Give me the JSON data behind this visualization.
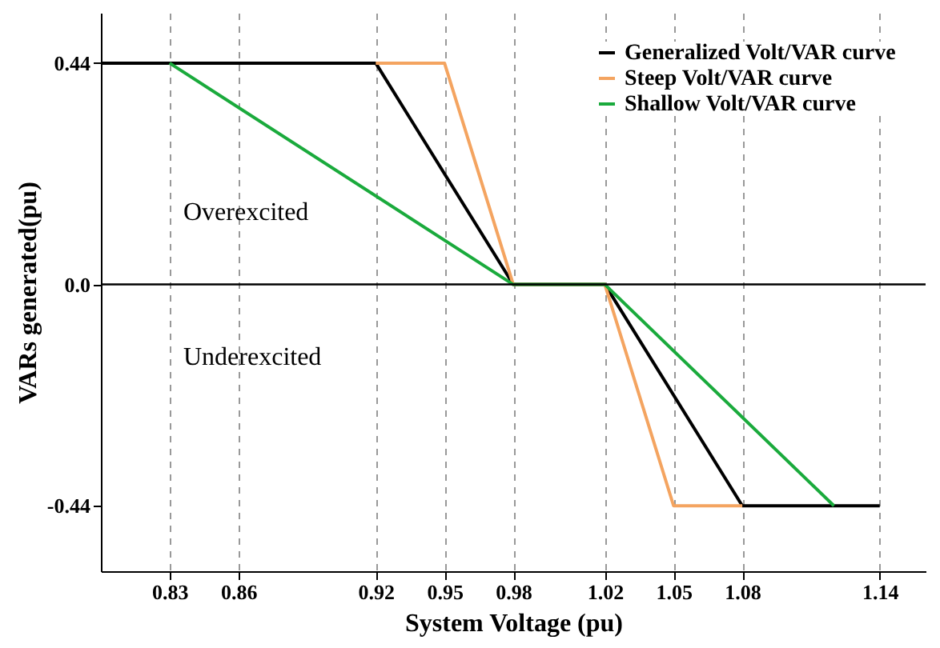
{
  "chart_data": {
    "type": "line",
    "xlabel": "System Voltage (pu)",
    "ylabel": "VARs generated(pu)",
    "xlim": [
      0.8,
      1.16
    ],
    "ylim": [
      -0.57,
      0.54
    ],
    "xticks": [
      0.83,
      0.86,
      0.92,
      0.95,
      0.98,
      1.02,
      1.05,
      1.08,
      1.14
    ],
    "yticks": [
      -0.44,
      {
        "value": 0,
        "label": "0.0"
      },
      0.44
    ],
    "grid": "x",
    "legend": "top right",
    "line_style": "solid",
    "marker": "none",
    "ref_lines": [
      {
        "axis": "y",
        "value": 0,
        "color": "#000000"
      }
    ],
    "annotations": [
      "Overexcited",
      "Underexcited"
    ],
    "series": [
      {
        "name": "Generalized Volt/VAR curve",
        "color": "#000000",
        "x": [
          0.8,
          0.92,
          0.98,
          1.02,
          1.08,
          1.14
        ],
        "values": [
          0.44,
          0.44,
          0,
          0,
          -0.44,
          -0.44
        ]
      },
      {
        "name": "Steep Volt/VAR curve",
        "color": "#f4a460",
        "x": [
          0.92,
          0.95,
          0.98,
          1.02,
          1.05,
          1.08
        ],
        "values": [
          0.44,
          0.44,
          0,
          0,
          -0.44,
          -0.44
        ]
      },
      {
        "name": "Shallow Volt/VAR curve",
        "color": "#1aaa3c",
        "x": [
          0.83,
          0.98,
          1.02,
          1.12
        ],
        "values": [
          0.44,
          0,
          0,
          -0.44
        ]
      }
    ]
  }
}
